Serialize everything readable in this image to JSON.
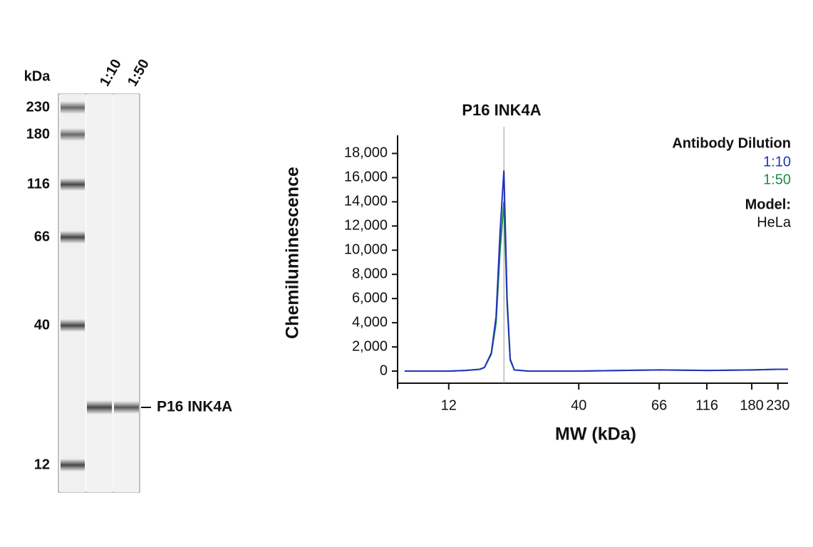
{
  "blot": {
    "unit": "kDa",
    "lanes": [
      "1:10",
      "1:50"
    ],
    "markers": [
      230,
      180,
      116,
      66,
      40,
      12
    ],
    "band_label": "P16 INK4A"
  },
  "chart_data": {
    "type": "line",
    "title": "P16 INK4A",
    "xlabel": "MW (kDa)",
    "ylabel": "Chemiluminescence",
    "x": [
      8,
      10,
      12,
      14,
      16,
      16.7,
      17.8,
      18.6,
      19.3,
      20,
      20.6,
      21.2,
      22,
      25,
      30,
      40,
      66,
      116,
      180,
      230,
      250
    ],
    "series": [
      {
        "name": "1:10",
        "color": "#2233bb",
        "values": [
          0,
          0,
          0,
          50,
          150,
          300,
          1500,
          4500,
          11500,
          16600,
          6000,
          1000,
          100,
          0,
          0,
          0,
          100,
          50,
          100,
          150,
          150
        ]
      },
      {
        "name": "1:50",
        "color": "#1f8a45",
        "values": [
          0,
          0,
          0,
          50,
          150,
          300,
          1400,
          4000,
          10000,
          14000,
          5500,
          900,
          100,
          0,
          0,
          0,
          100,
          50,
          100,
          150,
          150
        ]
      }
    ],
    "xlim": [
      7.5,
      250
    ],
    "xticks": [
      12,
      40,
      66,
      116,
      180,
      230
    ],
    "ylim": [
      -1000,
      19500
    ],
    "yticks": [
      0,
      {
        "value": 2000,
        "label": "2,000"
      },
      {
        "value": 4000,
        "label": "4,000"
      },
      {
        "value": 6000,
        "label": "6,000"
      },
      {
        "value": 8000,
        "label": "8,000"
      },
      {
        "value": 10000,
        "label": "10,000"
      },
      {
        "value": 12000,
        "label": "12,000"
      },
      {
        "value": 14000,
        "label": "14,000"
      },
      {
        "value": 16000,
        "label": "16,000"
      },
      {
        "value": 18000,
        "label": "18,000"
      }
    ],
    "legend": {
      "title": "Antibody Dilution",
      "position": "upper right"
    },
    "model_label": "Model:",
    "model": "HeLa"
  }
}
